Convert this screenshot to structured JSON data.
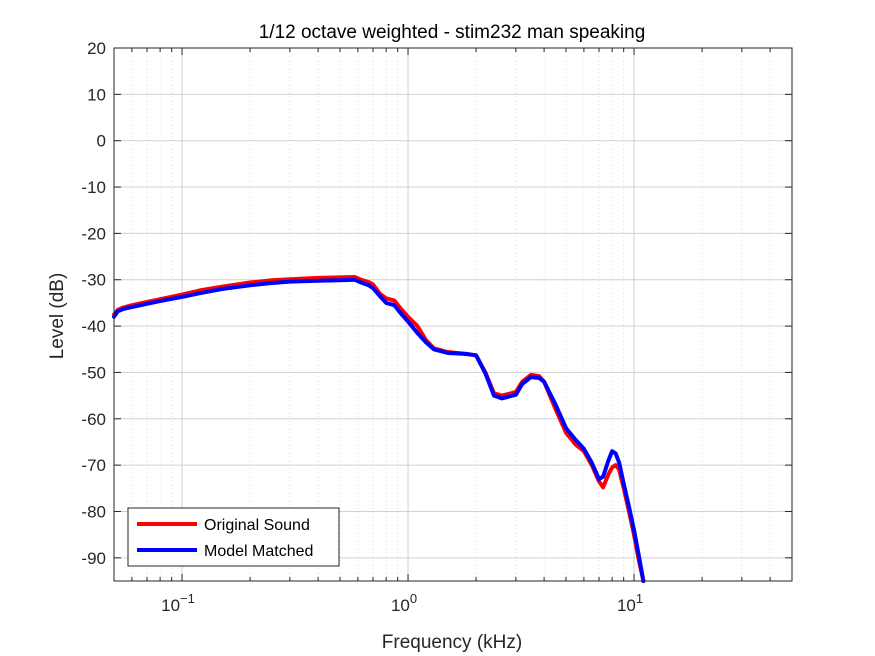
{
  "chart_data": {
    "type": "line",
    "title": "1/12 octave weighted - stim232 man speaking",
    "xlabel": "Frequency (kHz)",
    "ylabel": "Level (dB)",
    "xscale": "log",
    "xlim": [
      0.05,
      50
    ],
    "ylim": [
      -95,
      20
    ],
    "x_ticks": [
      {
        "value": 0.1,
        "base": "10",
        "exp": "−1"
      },
      {
        "value": 1,
        "base": "10",
        "exp": "0"
      },
      {
        "value": 10,
        "base": "10",
        "exp": "1"
      }
    ],
    "y_ticks": [
      20,
      10,
      0,
      -10,
      -20,
      -30,
      -40,
      -50,
      -60,
      -70,
      -80,
      -90
    ],
    "grid": true,
    "minor_grid": true,
    "legend_position": "bottom-left",
    "series": [
      {
        "name": "Original Sound",
        "color": "#ff0000",
        "x": [
          0.05,
          0.052,
          0.055,
          0.06,
          0.07,
          0.08,
          0.1,
          0.12,
          0.15,
          0.2,
          0.25,
          0.3,
          0.4,
          0.5,
          0.58,
          0.62,
          0.67,
          0.7,
          0.75,
          0.8,
          0.87,
          0.92,
          1.0,
          1.1,
          1.2,
          1.3,
          1.5,
          1.8,
          2.0,
          2.2,
          2.4,
          2.6,
          2.8,
          3.0,
          3.2,
          3.5,
          3.8,
          4.0,
          4.5,
          5.0,
          5.5,
          6.0,
          6.5,
          7.0,
          7.3,
          7.7,
          8.0,
          8.3,
          8.6,
          9.0,
          9.5,
          10.0,
          10.5,
          11.0
        ],
        "y": [
          -37.5,
          -36.5,
          -36,
          -35.5,
          -34.8,
          -34.2,
          -33.2,
          -32.3,
          -31.5,
          -30.6,
          -30.1,
          -29.9,
          -29.6,
          -29.5,
          -29.4,
          -30.0,
          -30.5,
          -31.0,
          -33.0,
          -34.0,
          -34.5,
          -36.0,
          -38.0,
          -40.0,
          -43.0,
          -44.8,
          -45.6,
          -46.0,
          -46.3,
          -50.0,
          -54.5,
          -55.0,
          -54.6,
          -54.2,
          -52.0,
          -50.5,
          -50.8,
          -52.0,
          -58.0,
          -63.0,
          -65.5,
          -67.0,
          -70.0,
          -73.5,
          -74.8,
          -72.0,
          -70.5,
          -70.0,
          -71.0,
          -75.0,
          -80.0,
          -85.0,
          -90.5,
          -95.0
        ]
      },
      {
        "name": "Model Matched",
        "color": "#0000ff",
        "x": [
          0.05,
          0.052,
          0.055,
          0.06,
          0.07,
          0.08,
          0.1,
          0.12,
          0.15,
          0.2,
          0.25,
          0.3,
          0.4,
          0.5,
          0.58,
          0.62,
          0.67,
          0.7,
          0.75,
          0.8,
          0.87,
          0.92,
          1.0,
          1.1,
          1.2,
          1.3,
          1.5,
          1.8,
          2.0,
          2.2,
          2.4,
          2.6,
          2.8,
          3.0,
          3.2,
          3.5,
          3.8,
          4.0,
          4.5,
          5.0,
          5.5,
          6.0,
          6.5,
          7.0,
          7.3,
          7.7,
          8.0,
          8.3,
          8.6,
          9.0,
          9.5,
          10.0,
          10.5,
          11.0
        ],
        "y": [
          -38.0,
          -36.8,
          -36.3,
          -35.9,
          -35.2,
          -34.6,
          -33.7,
          -32.9,
          -32.0,
          -31.2,
          -30.7,
          -30.4,
          -30.2,
          -30.1,
          -30.0,
          -30.6,
          -31.2,
          -31.8,
          -33.5,
          -35.0,
          -35.5,
          -37.0,
          -39.0,
          -41.5,
          -43.5,
          -45.0,
          -45.8,
          -46.0,
          -46.3,
          -50.2,
          -55.0,
          -55.6,
          -55.2,
          -54.8,
          -52.5,
          -51.0,
          -51.2,
          -52.0,
          -57.0,
          -62.0,
          -64.5,
          -66.5,
          -69.5,
          -73.0,
          -72.5,
          -69.0,
          -67.0,
          -67.5,
          -69.5,
          -74.0,
          -79.0,
          -84.0,
          -89.5,
          -95.0
        ]
      }
    ]
  }
}
